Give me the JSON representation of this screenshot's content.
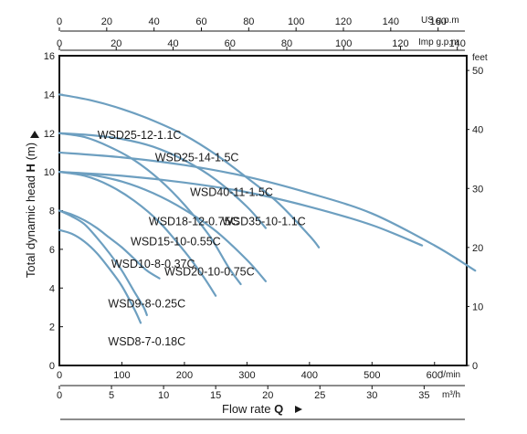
{
  "chart_data": {
    "type": "line",
    "xlabel_prefix": "Flow rate ",
    "xlabel_symbol": "Q",
    "ylabel_prefix": "Total dynamic head ",
    "ylabel_symbol": "H",
    "ylabel_unit": " (m)",
    "xlim": [
      0,
      650
    ],
    "ylim": [
      0,
      16
    ],
    "x_unit": "l/min",
    "y_unit": "",
    "right_unit": "feet",
    "top1_unit": "US g.p.m",
    "top2_unit": "Imp g.p.m",
    "bottom2_unit": "m³/h",
    "x_ticks": [
      "0",
      "100",
      "200",
      "300",
      "400",
      "500",
      "600"
    ],
    "y_ticks": [
      "0",
      "2",
      "4",
      "6",
      "8",
      "10",
      "12",
      "14",
      "16"
    ],
    "right_ticks": [
      "0",
      "10",
      "20",
      "30",
      "40",
      "50"
    ],
    "top1_ticks": [
      "0",
      "20",
      "40",
      "60",
      "80",
      "100",
      "120",
      "140",
      "160"
    ],
    "top2_ticks": [
      "0",
      "20",
      "40",
      "60",
      "80",
      "100",
      "120",
      "140"
    ],
    "bottom2_ticks": [
      "0",
      "5",
      "10",
      "15",
      "20",
      "25",
      "30",
      "35"
    ],
    "grid": false,
    "line_color": "#6d9fc0",
    "series": [
      {
        "name": "WSD8-7-0.18C",
        "x": [
          0,
          20,
          40,
          60,
          80,
          100,
          120,
          130
        ],
        "y": [
          7.0,
          6.8,
          6.4,
          5.8,
          5.0,
          4.1,
          2.9,
          2.2
        ]
      },
      {
        "name": "WSD9-8-0.25C",
        "x": [
          0,
          20,
          40,
          60,
          80,
          100,
          120,
          135,
          140
        ],
        "y": [
          8.0,
          7.7,
          7.3,
          6.6,
          5.8,
          4.9,
          3.8,
          3.0,
          2.6
        ]
      },
      {
        "name": "WSD10-8-0.37C",
        "x": [
          0,
          20,
          40,
          60,
          80,
          100,
          120,
          140,
          160
        ],
        "y": [
          8.0,
          7.8,
          7.5,
          7.1,
          6.6,
          6.1,
          5.5,
          4.9,
          4.5
        ]
      },
      {
        "name": "WSD15-10-0.55C",
        "x": [
          0,
          40,
          80,
          120,
          160,
          200,
          230,
          250
        ],
        "y": [
          10.0,
          9.8,
          9.3,
          8.5,
          7.4,
          5.9,
          4.6,
          3.6
        ]
      },
      {
        "name": "WSD18-12-0.75C",
        "x": [
          0,
          40,
          80,
          120,
          160,
          200,
          240,
          270,
          290
        ],
        "y": [
          12.0,
          11.8,
          11.3,
          10.6,
          9.6,
          8.3,
          6.7,
          5.1,
          4.2
        ]
      },
      {
        "name": "WSD20-10-0.75C",
        "x": [
          0,
          50,
          100,
          150,
          200,
          250,
          300,
          330
        ],
        "y": [
          10.0,
          9.85,
          9.5,
          8.9,
          8.05,
          6.95,
          5.45,
          4.35
        ]
      },
      {
        "name": "WSD25-12-1.1C",
        "x": [
          0,
          50,
          100,
          150,
          200,
          250,
          300,
          330
        ],
        "y": [
          12.0,
          11.9,
          11.7,
          11.3,
          10.6,
          9.6,
          8.2,
          7.1
        ]
      },
      {
        "name": "WSD25-14-1.5C",
        "x": [
          0,
          50,
          100,
          150,
          200,
          250,
          300,
          350,
          400,
          415
        ],
        "y": [
          14.0,
          13.7,
          13.25,
          12.65,
          11.9,
          10.9,
          9.7,
          8.4,
          6.7,
          6.1
        ]
      },
      {
        "name": "WSD40-11-1.5C",
        "x": [
          0,
          100,
          200,
          300,
          400,
          500,
          580
        ],
        "y": [
          10.0,
          9.8,
          9.45,
          8.95,
          8.2,
          7.25,
          6.2
        ]
      },
      {
        "name": "WSD35-10-1.1C",
        "x": [
          0,
          100,
          200,
          300,
          400,
          500,
          600,
          665
        ],
        "y": [
          11.0,
          10.75,
          10.35,
          9.75,
          8.9,
          7.85,
          6.2,
          4.9
        ]
      }
    ],
    "labels": [
      {
        "text": "WSD8-7-0.18C",
        "x": 78,
        "y": 1.05
      },
      {
        "text": "WSD9-8-0.25C",
        "x": 78,
        "y": 3.0
      },
      {
        "text": "WSD10-8-0.37C",
        "x": 83,
        "y": 5.05
      },
      {
        "text": "WSD15-10-0.55C",
        "x": 114,
        "y": 6.2
      },
      {
        "text": "WSD18-12-0.75C",
        "x": 143,
        "y": 7.25
      },
      {
        "text": "WSD20-10-0.75C",
        "x": 168,
        "y": 4.65
      },
      {
        "text": "WSD25-12-1.1C",
        "x": 61,
        "y": 11.7
      },
      {
        "text": "WSD25-14-1.5C",
        "x": 153,
        "y": 10.55
      },
      {
        "text": "WSD40-11-1.5C",
        "x": 209,
        "y": 8.75
      },
      {
        "text": "WSD35-10-1.1C",
        "x": 260,
        "y": 7.25
      }
    ]
  }
}
